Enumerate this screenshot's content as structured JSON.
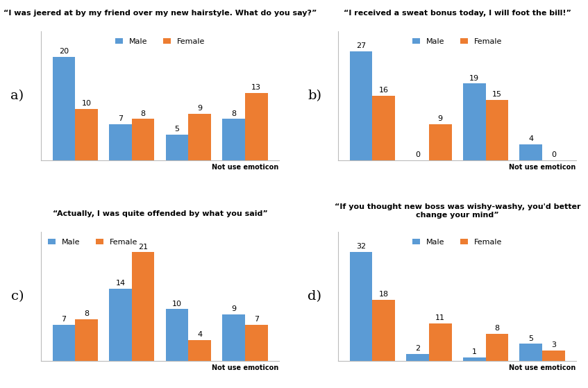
{
  "chart_data": [
    {
      "type": "bar",
      "label": "a)",
      "title": "“I was jeered at by my friend over my new hairstyle. What do you say?”",
      "categories": [
        null,
        null,
        null,
        "Not use emoticon"
      ],
      "series": [
        {
          "name": "Male",
          "color": "#5B9BD5",
          "values": [
            20,
            7,
            5,
            8
          ]
        },
        {
          "name": "Female",
          "color": "#ED7D31",
          "values": [
            10,
            8,
            9,
            13
          ]
        }
      ],
      "ylim": [
        0,
        25
      ],
      "yticks": [],
      "legend": "upper center",
      "data_labels": true,
      "tick_labels": "x"
    },
    {
      "type": "bar",
      "label": "b)",
      "title": "“I received a sweat bonus today, I will foot the bill!”",
      "categories": [
        null,
        null,
        null,
        "Not use emoticon"
      ],
      "series": [
        {
          "name": "Male",
          "color": "#5B9BD5",
          "values": [
            27,
            0,
            19,
            4
          ]
        },
        {
          "name": "Female",
          "color": "#ED7D31",
          "values": [
            16,
            9,
            15,
            0
          ]
        }
      ],
      "ylim": [
        0,
        32
      ],
      "yticks": [],
      "legend": "upper center",
      "data_labels": true,
      "tick_labels": "x"
    },
    {
      "type": "bar",
      "label": "c)",
      "title": "“Actually, I was quite offended by what you said”",
      "categories": [
        null,
        null,
        null,
        "Not use emoticon"
      ],
      "series": [
        {
          "name": "Male",
          "color": "#5B9BD5",
          "values": [
            7,
            14,
            10,
            9
          ]
        },
        {
          "name": "Female",
          "color": "#ED7D31",
          "values": [
            8,
            21,
            4,
            7
          ]
        }
      ],
      "ylim": [
        0,
        25
      ],
      "yticks": [],
      "legend": "upper left",
      "data_labels": true,
      "tick_labels": "x"
    },
    {
      "type": "bar",
      "label": "d)",
      "title": "“If you thought new boss was wishy-washy, you'd better change your mind”",
      "categories": [
        null,
        null,
        null,
        "Not use emoticon"
      ],
      "series": [
        {
          "name": "Male",
          "color": "#5B9BD5",
          "values": [
            32,
            2,
            1,
            5
          ]
        },
        {
          "name": "Female",
          "color": "#ED7D31",
          "values": [
            18,
            11,
            8,
            3
          ]
        }
      ],
      "ylim": [
        0,
        38
      ],
      "yticks": [],
      "legend": "upper center",
      "data_labels": true,
      "tick_labels": "x"
    }
  ]
}
